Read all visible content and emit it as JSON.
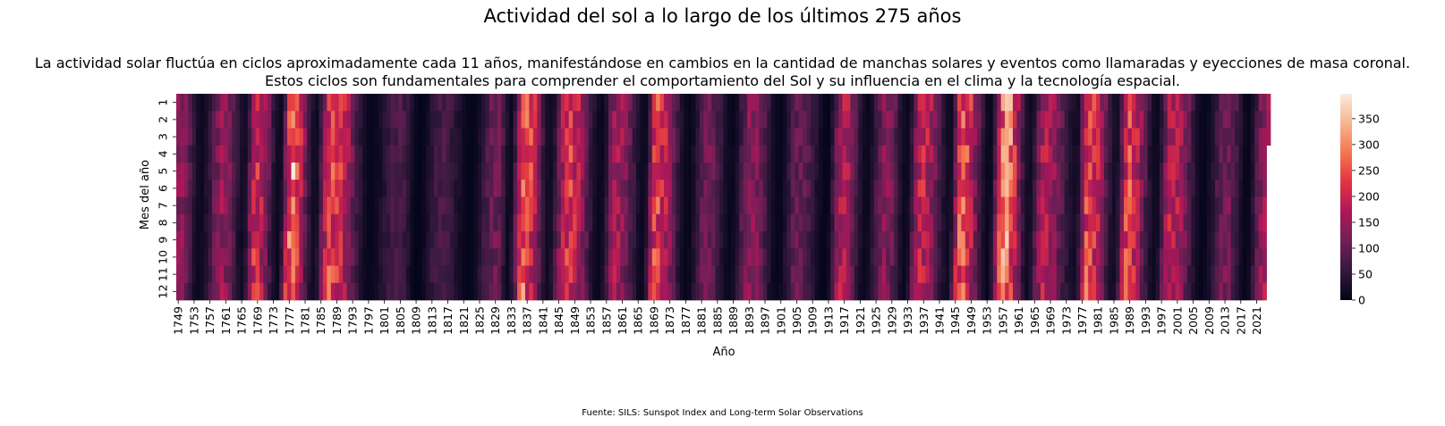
{
  "title": "Actividad del sol a lo largo de los últimos 275 años",
  "subtitle_lines": [
    "La actividad solar fluctúa en ciclos aproximadamente cada 11 años, manifestándose en cambios en la cantidad de manchas solares y eventos como llamaradas y eyecciones de masa coronal.",
    "Estos ciclos son fundamentales para comprender el comportamiento del Sol y su influencia en el clima y la tecnología espacial."
  ],
  "source": "Fuente: SILS: Sunspot Index and Long-term Solar Observations",
  "colors": {
    "colormap": "rocket",
    "stops": [
      "#03051a",
      "#35193e",
      "#701f57",
      "#ad1759",
      "#e13342",
      "#f37651",
      "#f6b48f",
      "#faebdd"
    ]
  },
  "chart_data": {
    "type": "heatmap",
    "xlabel": "Año",
    "ylabel": "Mes del año",
    "x_start": 1749,
    "x_end": 2024,
    "x_tick_labels": [
      "1749",
      "1753",
      "1757",
      "1761",
      "1765",
      "1769",
      "1773",
      "1777",
      "1781",
      "1785",
      "1789",
      "1793",
      "1797",
      "1801",
      "1805",
      "1809",
      "1813",
      "1817",
      "1821",
      "1825",
      "1829",
      "1833",
      "1837",
      "1841",
      "1845",
      "1849",
      "1853",
      "1857",
      "1861",
      "1865",
      "1869",
      "1873",
      "1877",
      "1881",
      "1885",
      "1889",
      "1893",
      "1897",
      "1901",
      "1905",
      "1909",
      "1913",
      "1917",
      "1921",
      "1925",
      "1929",
      "1933",
      "1937",
      "1941",
      "1945",
      "1949",
      "1953",
      "1957",
      "1961",
      "1965",
      "1969",
      "1973",
      "1977",
      "1981",
      "1985",
      "1989",
      "1993",
      "1997",
      "2001",
      "2005",
      "2009",
      "2013",
      "2017",
      "2021"
    ],
    "y_tick_labels": [
      "1",
      "2",
      "3",
      "4",
      "5",
      "6",
      "7",
      "8",
      "9",
      "10",
      "11",
      "12"
    ],
    "colorbar": {
      "min": 0,
      "max": 398,
      "ticks": [
        "0",
        "50",
        "100",
        "150",
        "200",
        "250",
        "300",
        "350"
      ]
    },
    "last_year_months_available": 3,
    "annual_peaks": [
      {
        "year": 1750,
        "value": 140
      },
      {
        "year": 1761,
        "value": 145
      },
      {
        "year": 1769,
        "value": 210
      },
      {
        "year": 1778,
        "value": 265
      },
      {
        "year": 1788,
        "value": 235
      },
      {
        "year": 1805,
        "value": 80
      },
      {
        "year": 1816,
        "value": 75
      },
      {
        "year": 1830,
        "value": 110
      },
      {
        "year": 1837,
        "value": 250
      },
      {
        "year": 1848,
        "value": 220
      },
      {
        "year": 1860,
        "value": 160
      },
      {
        "year": 1870,
        "value": 230
      },
      {
        "year": 1883,
        "value": 110
      },
      {
        "year": 1894,
        "value": 140
      },
      {
        "year": 1906,
        "value": 105
      },
      {
        "year": 1917,
        "value": 175
      },
      {
        "year": 1928,
        "value": 135
      },
      {
        "year": 1937,
        "value": 190
      },
      {
        "year": 1947,
        "value": 250
      },
      {
        "year": 1958,
        "value": 300
      },
      {
        "year": 1968,
        "value": 175
      },
      {
        "year": 1979,
        "value": 240
      },
      {
        "year": 1989,
        "value": 230
      },
      {
        "year": 2000,
        "value": 190
      },
      {
        "year": 2014,
        "value": 115
      },
      {
        "year": 2024,
        "value": 165
      }
    ],
    "annual_minima": [
      {
        "year": 1755,
        "value": 10
      },
      {
        "year": 1766,
        "value": 15
      },
      {
        "year": 1775,
        "value": 10
      },
      {
        "year": 1784,
        "value": 15
      },
      {
        "year": 1798,
        "value": 5
      },
      {
        "year": 1810,
        "value": 0
      },
      {
        "year": 1823,
        "value": 2
      },
      {
        "year": 1833,
        "value": 10
      },
      {
        "year": 1843,
        "value": 15
      },
      {
        "year": 1856,
        "value": 7
      },
      {
        "year": 1867,
        "value": 10
      },
      {
        "year": 1878,
        "value": 5
      },
      {
        "year": 1889,
        "value": 8
      },
      {
        "year": 1901,
        "value": 4
      },
      {
        "year": 1913,
        "value": 2
      },
      {
        "year": 1923,
        "value": 9
      },
      {
        "year": 1933,
        "value": 9
      },
      {
        "year": 1944,
        "value": 15
      },
      {
        "year": 1954,
        "value": 7
      },
      {
        "year": 1964,
        "value": 15
      },
      {
        "year": 1976,
        "value": 20
      },
      {
        "year": 1986,
        "value": 20
      },
      {
        "year": 1996,
        "value": 13
      },
      {
        "year": 2008,
        "value": 4
      },
      {
        "year": 2019,
        "value": 4
      }
    ],
    "notable_cells": [
      {
        "year": 1778,
        "month": 5,
        "value": 398
      },
      {
        "year": 1836,
        "month": 12,
        "value": 340
      },
      {
        "year": 1957,
        "month": 10,
        "value": 360
      },
      {
        "year": 1989,
        "month": 6,
        "value": 300
      }
    ]
  }
}
